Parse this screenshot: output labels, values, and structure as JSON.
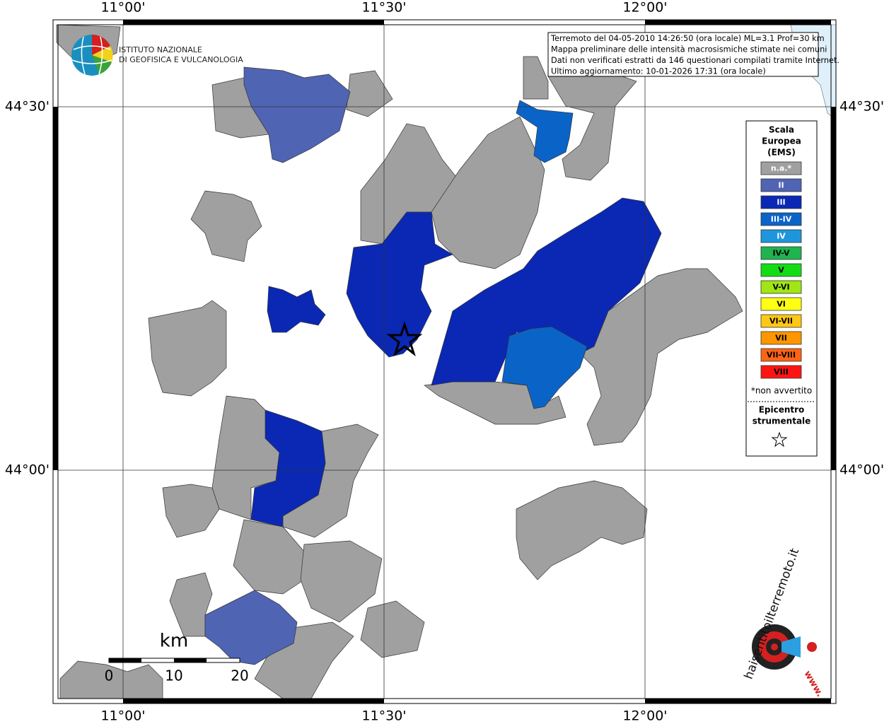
{
  "map": {
    "x_labels_top": [
      "11°00'",
      "11°30'",
      "12°00'"
    ],
    "x_labels_bottom": [
      "11°00'",
      "11°30'",
      "12°00'"
    ],
    "y_labels_left": [
      "44°30'",
      "44°00'"
    ],
    "y_labels_right": [
      "44°30'",
      "44°00'"
    ]
  },
  "institute": {
    "lines": [
      "ISTITUTO NAZIONALE",
      "DI GEOFISICA E VULCANOLOGIA"
    ]
  },
  "info_box": {
    "lines": [
      "Terremoto del 04-05-2010 14:26:50 (ora locale) ML=3.1 Prof=30 km",
      "Mappa preliminare delle intensità macrosismiche stimate nei comuni",
      "Dati non verificati estratti da 146 questionari compilati tramite Internet.",
      "Ultimo aggiornamento: 10-01-2026 17:31 (ora locale)"
    ]
  },
  "legend": {
    "title_lines": [
      "Scala",
      "Europea",
      "(EMS)"
    ],
    "items": [
      {
        "label": "n.a.*",
        "color": "#a0a0a0"
      },
      {
        "label": "II",
        "color": "#5064b4"
      },
      {
        "label": "III",
        "color": "#0a28b4"
      },
      {
        "label": "III-IV",
        "color": "#0a64c8"
      },
      {
        "label": "IV",
        "color": "#1e96dc"
      },
      {
        "label": "IV-V",
        "color": "#1eb450"
      },
      {
        "label": "V",
        "color": "#14dc14"
      },
      {
        "label": "V-VI",
        "color": "#a0e614"
      },
      {
        "label": "VI",
        "color": "#ffff14"
      },
      {
        "label": "VI-VII",
        "color": "#ffc814"
      },
      {
        "label": "VII",
        "color": "#ff9600"
      },
      {
        "label": "VII-VIII",
        "color": "#ff6414"
      },
      {
        "label": "VIII",
        "color": "#ff1414"
      }
    ],
    "note": "*non avvertito",
    "epicenter_title": [
      "Epicentro",
      "strumentale"
    ]
  },
  "scale_bar": {
    "unit": "km",
    "labels": [
      "0",
      "10",
      "20"
    ]
  },
  "site_logo": {
    "name": "haisentitoilterremoto.it",
    "prefix": "www."
  }
}
